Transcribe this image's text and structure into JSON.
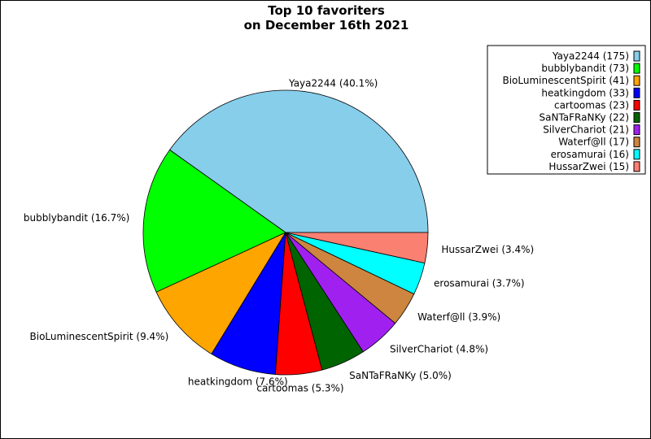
{
  "chart_data": {
    "type": "pie",
    "title": [
      "Top 10 favoriters",
      "on December 16th 2021"
    ],
    "start_angle_deg": 0,
    "direction": "counterclockwise",
    "legend_placement": "top-right",
    "slices": [
      {
        "name": "Yaya2244",
        "value": 175,
        "percent": "40.1%",
        "color": "#87ceeb"
      },
      {
        "name": "bubblybandit",
        "value": 73,
        "percent": "16.7%",
        "color": "#00ff00"
      },
      {
        "name": "BioLuminescentSpirit",
        "value": 41,
        "percent": "9.4%",
        "color": "#ffa500"
      },
      {
        "name": "heatkingdom",
        "value": 33,
        "percent": "7.6%",
        "color": "#0000ff"
      },
      {
        "name": "cartoomas",
        "value": 23,
        "percent": "5.3%",
        "color": "#ff0000"
      },
      {
        "name": "SaNTaFRaNKy",
        "value": 22,
        "percent": "5.0%",
        "color": "#006400"
      },
      {
        "name": "SilverChariot",
        "value": 21,
        "percent": "4.8%",
        "color": "#a020f0"
      },
      {
        "name": "Waterf@ll",
        "value": 17,
        "percent": "3.9%",
        "color": "#cd853f"
      },
      {
        "name": "erosamurai",
        "value": 16,
        "percent": "3.7%",
        "color": "#00ffff"
      },
      {
        "name": "HussarZwei",
        "value": 15,
        "percent": "3.4%",
        "color": "#fa8072"
      }
    ]
  }
}
